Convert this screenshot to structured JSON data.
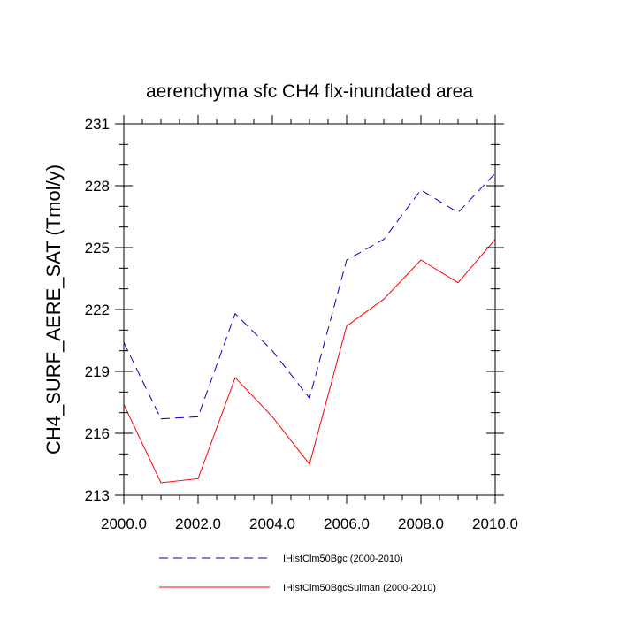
{
  "chart_data": {
    "type": "line",
    "title": "aerenchyma sfc CH4 flx-inundated area",
    "xlabel": "",
    "ylabel": "CH4_SURF_AERE_SAT  (Tmol/y)",
    "xlim": [
      2000,
      2010
    ],
    "ylim": [
      213,
      231
    ],
    "x_ticks": [
      2000,
      2002,
      2004,
      2006,
      2008,
      2010
    ],
    "x_tick_labels": [
      "2000.0",
      "2002.0",
      "2004.0",
      "2006.0",
      "2008.0",
      "2010.0"
    ],
    "y_ticks": [
      213,
      216,
      219,
      222,
      225,
      228,
      231
    ],
    "y_tick_labels": [
      "213",
      "216",
      "219",
      "222",
      "225",
      "228",
      "231"
    ],
    "x": [
      2000,
      2001,
      2002,
      2003,
      2004,
      2005,
      2006,
      2007,
      2008,
      2009,
      2010
    ],
    "grid": false,
    "legend_position": "bottom",
    "series": [
      {
        "name": "IHistClm50Bgc (2000-2010)",
        "color": "#0000cc",
        "style": "dashed",
        "values": [
          220.4,
          216.7,
          216.8,
          221.8,
          220.0,
          217.7,
          224.4,
          225.4,
          227.8,
          226.7,
          228.6
        ]
      },
      {
        "name": "IHistClm50BgcSulman (2000-2010)",
        "color": "#ff0000",
        "style": "solid",
        "values": [
          217.4,
          213.6,
          213.8,
          218.7,
          216.8,
          214.5,
          221.2,
          222.5,
          224.4,
          223.3,
          225.4
        ]
      }
    ]
  }
}
